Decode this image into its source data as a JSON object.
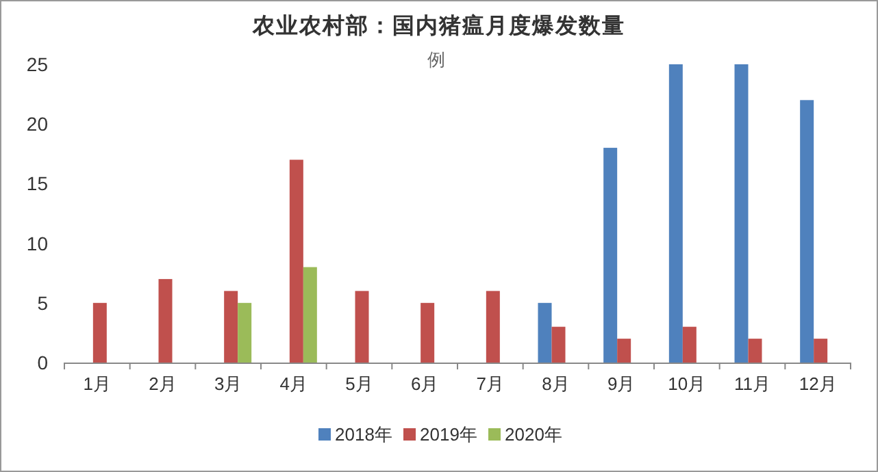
{
  "chart_data": {
    "type": "bar",
    "title": "农业农村部：国内猪瘟月度爆发数量",
    "subtitle": "例",
    "categories": [
      "1月",
      "2月",
      "3月",
      "4月",
      "5月",
      "6月",
      "7月",
      "8月",
      "9月",
      "10月",
      "11月",
      "12月"
    ],
    "series": [
      {
        "name": "2018年",
        "color": "#4f81bd",
        "values": [
          null,
          null,
          null,
          null,
          null,
          null,
          null,
          5,
          18,
          25,
          25,
          22
        ]
      },
      {
        "name": "2019年",
        "color": "#c0504d",
        "values": [
          5,
          7,
          6,
          17,
          6,
          5,
          6,
          3,
          2,
          3,
          2,
          2
        ]
      },
      {
        "name": "2020年",
        "color": "#9bbb59",
        "values": [
          null,
          null,
          5,
          8,
          null,
          null,
          null,
          null,
          null,
          null,
          null,
          null
        ]
      }
    ],
    "ylim": [
      0,
      25
    ],
    "yticks": [
      0,
      5,
      10,
      15,
      20,
      25
    ],
    "grid": false,
    "legend": "bottom"
  }
}
